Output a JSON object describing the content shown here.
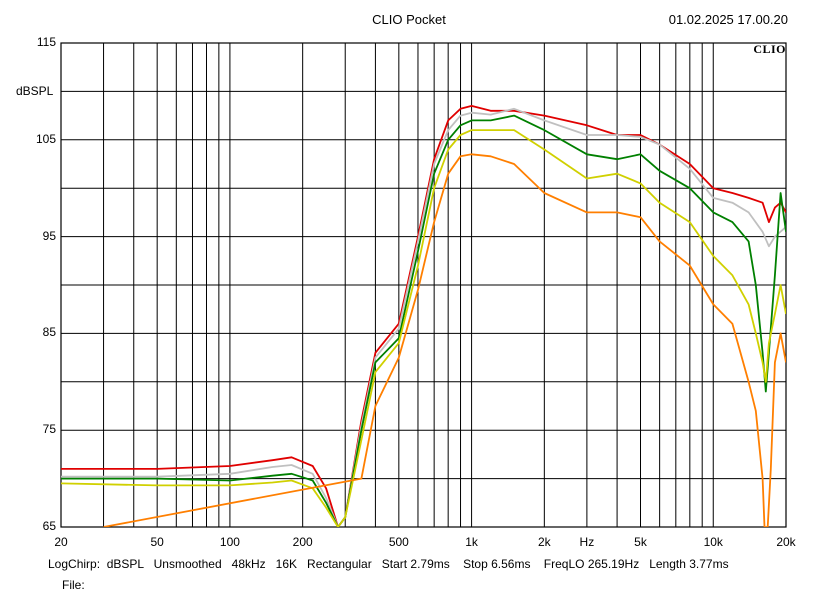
{
  "header": {
    "title": "CLIO Pocket",
    "datetime": "01.02.2025 17.00.20",
    "logo": "CLIO"
  },
  "footer": {
    "line": "LogChirp:  dBSPL   Unsmoothed   48kHz   16K   Rectangular   Start 2.79ms    Stop 6.56ms    FreqLO 265.19Hz   Length 3.77ms",
    "file_label": "File:"
  },
  "chart_data": {
    "type": "line",
    "title": "CLIO Pocket",
    "xlabel": "Hz",
    "ylabel": "dBSPL",
    "xscale": "log",
    "xlim": [
      20,
      20000
    ],
    "ylim": [
      65,
      115
    ],
    "grid": true,
    "xticks": [
      "20",
      "50",
      "100",
      "200",
      "500",
      "1k",
      "2k",
      "5k",
      "10k",
      "20k"
    ],
    "yticks": [
      "115",
      "105",
      "95",
      "85",
      "75",
      "65"
    ],
    "series": [
      {
        "color": "#e00000",
        "points": [
          [
            20,
            71
          ],
          [
            50,
            71
          ],
          [
            100,
            71.3
          ],
          [
            150,
            71.9
          ],
          [
            180,
            72.2
          ],
          [
            220,
            71.3
          ],
          [
            250,
            69
          ],
          [
            280,
            65
          ],
          [
            300,
            66
          ],
          [
            350,
            76
          ],
          [
            400,
            83
          ],
          [
            500,
            86
          ],
          [
            600,
            95
          ],
          [
            700,
            103
          ],
          [
            800,
            107
          ],
          [
            900,
            108.2
          ],
          [
            1000,
            108.5
          ],
          [
            1200,
            108
          ],
          [
            1500,
            108
          ],
          [
            2000,
            107.5
          ],
          [
            3000,
            106.5
          ],
          [
            4000,
            105.5
          ],
          [
            5000,
            105.5
          ],
          [
            6000,
            104.5
          ],
          [
            8000,
            102.5
          ],
          [
            10000,
            100
          ],
          [
            12000,
            99.5
          ],
          [
            14000,
            99
          ],
          [
            16000,
            98.5
          ],
          [
            17000,
            96.5
          ],
          [
            18000,
            98
          ],
          [
            19000,
            98.5
          ],
          [
            20000,
            97.5
          ]
        ]
      },
      {
        "color": "#c0c0c0",
        "points": [
          [
            20,
            70.2
          ],
          [
            50,
            70.2
          ],
          [
            100,
            70.5
          ],
          [
            150,
            71.2
          ],
          [
            180,
            71.4
          ],
          [
            220,
            70.5
          ],
          [
            250,
            68
          ],
          [
            280,
            65
          ],
          [
            300,
            66
          ],
          [
            350,
            75.5
          ],
          [
            400,
            82.5
          ],
          [
            500,
            85.5
          ],
          [
            600,
            94.5
          ],
          [
            700,
            102.5
          ],
          [
            800,
            106
          ],
          [
            900,
            107.5
          ],
          [
            1000,
            107.8
          ],
          [
            1200,
            107.6
          ],
          [
            1500,
            108.2
          ],
          [
            2000,
            107
          ],
          [
            3000,
            105.5
          ],
          [
            4000,
            105.5
          ],
          [
            5000,
            105.3
          ],
          [
            6000,
            104.5
          ],
          [
            8000,
            102
          ],
          [
            10000,
            99
          ],
          [
            12000,
            98.5
          ],
          [
            14000,
            97.5
          ],
          [
            16000,
            95.5
          ],
          [
            17000,
            94
          ],
          [
            18000,
            95
          ],
          [
            20000,
            96
          ]
        ]
      },
      {
        "color": "#008000",
        "points": [
          [
            20,
            70
          ],
          [
            50,
            70
          ],
          [
            100,
            69.8
          ],
          [
            150,
            70.3
          ],
          [
            180,
            70.5
          ],
          [
            220,
            69.8
          ],
          [
            250,
            67.5
          ],
          [
            280,
            65
          ],
          [
            300,
            66
          ],
          [
            350,
            75
          ],
          [
            400,
            82
          ],
          [
            500,
            84.5
          ],
          [
            600,
            93.5
          ],
          [
            700,
            101.5
          ],
          [
            800,
            105
          ],
          [
            900,
            106.5
          ],
          [
            1000,
            107
          ],
          [
            1200,
            107
          ],
          [
            1500,
            107.5
          ],
          [
            2000,
            106
          ],
          [
            3000,
            103.5
          ],
          [
            4000,
            103
          ],
          [
            5000,
            103.5
          ],
          [
            6000,
            101.8
          ],
          [
            8000,
            100
          ],
          [
            10000,
            97.5
          ],
          [
            12000,
            96.5
          ],
          [
            14000,
            94.5
          ],
          [
            15000,
            90
          ],
          [
            16000,
            83
          ],
          [
            16500,
            79
          ],
          [
            17000,
            83
          ],
          [
            18000,
            91
          ],
          [
            19000,
            99.5
          ],
          [
            20000,
            95.5
          ]
        ]
      },
      {
        "color": "#d0d000",
        "points": [
          [
            20,
            69.5
          ],
          [
            50,
            69.3
          ],
          [
            100,
            69.3
          ],
          [
            150,
            69.6
          ],
          [
            180,
            69.8
          ],
          [
            220,
            69
          ],
          [
            250,
            67
          ],
          [
            280,
            65
          ],
          [
            300,
            66
          ],
          [
            350,
            74
          ],
          [
            400,
            81
          ],
          [
            500,
            84
          ],
          [
            600,
            92
          ],
          [
            700,
            100
          ],
          [
            800,
            104
          ],
          [
            900,
            105.5
          ],
          [
            1000,
            106
          ],
          [
            1200,
            106
          ],
          [
            1500,
            106
          ],
          [
            2000,
            104
          ],
          [
            3000,
            101
          ],
          [
            4000,
            101.5
          ],
          [
            5000,
            100.5
          ],
          [
            6000,
            98.5
          ],
          [
            8000,
            96.5
          ],
          [
            10000,
            93
          ],
          [
            12000,
            91
          ],
          [
            14000,
            88
          ],
          [
            15000,
            85
          ],
          [
            16000,
            82
          ],
          [
            16500,
            80
          ],
          [
            17000,
            84
          ],
          [
            18000,
            87
          ],
          [
            19000,
            90
          ],
          [
            20000,
            87
          ]
        ]
      },
      {
        "color": "#ff7f00",
        "points": [
          [
            30,
            65
          ],
          [
            350,
            70
          ],
          [
            400,
            77.5
          ],
          [
            500,
            82.5
          ],
          [
            600,
            89.5
          ],
          [
            700,
            96.5
          ],
          [
            800,
            101.5
          ],
          [
            900,
            103.3
          ],
          [
            1000,
            103.5
          ],
          [
            1200,
            103.3
          ],
          [
            1500,
            102.5
          ],
          [
            2000,
            99.5
          ],
          [
            3000,
            97.5
          ],
          [
            4000,
            97.5
          ],
          [
            5000,
            97
          ],
          [
            6000,
            94.5
          ],
          [
            8000,
            92
          ],
          [
            10000,
            88
          ],
          [
            12000,
            86
          ],
          [
            14000,
            80
          ],
          [
            15000,
            77
          ],
          [
            16000,
            70
          ],
          [
            16300,
            65
          ],
          [
            16800,
            65
          ],
          [
            17300,
            71
          ],
          [
            18000,
            82
          ],
          [
            19000,
            85
          ],
          [
            20000,
            82
          ]
        ]
      }
    ]
  }
}
